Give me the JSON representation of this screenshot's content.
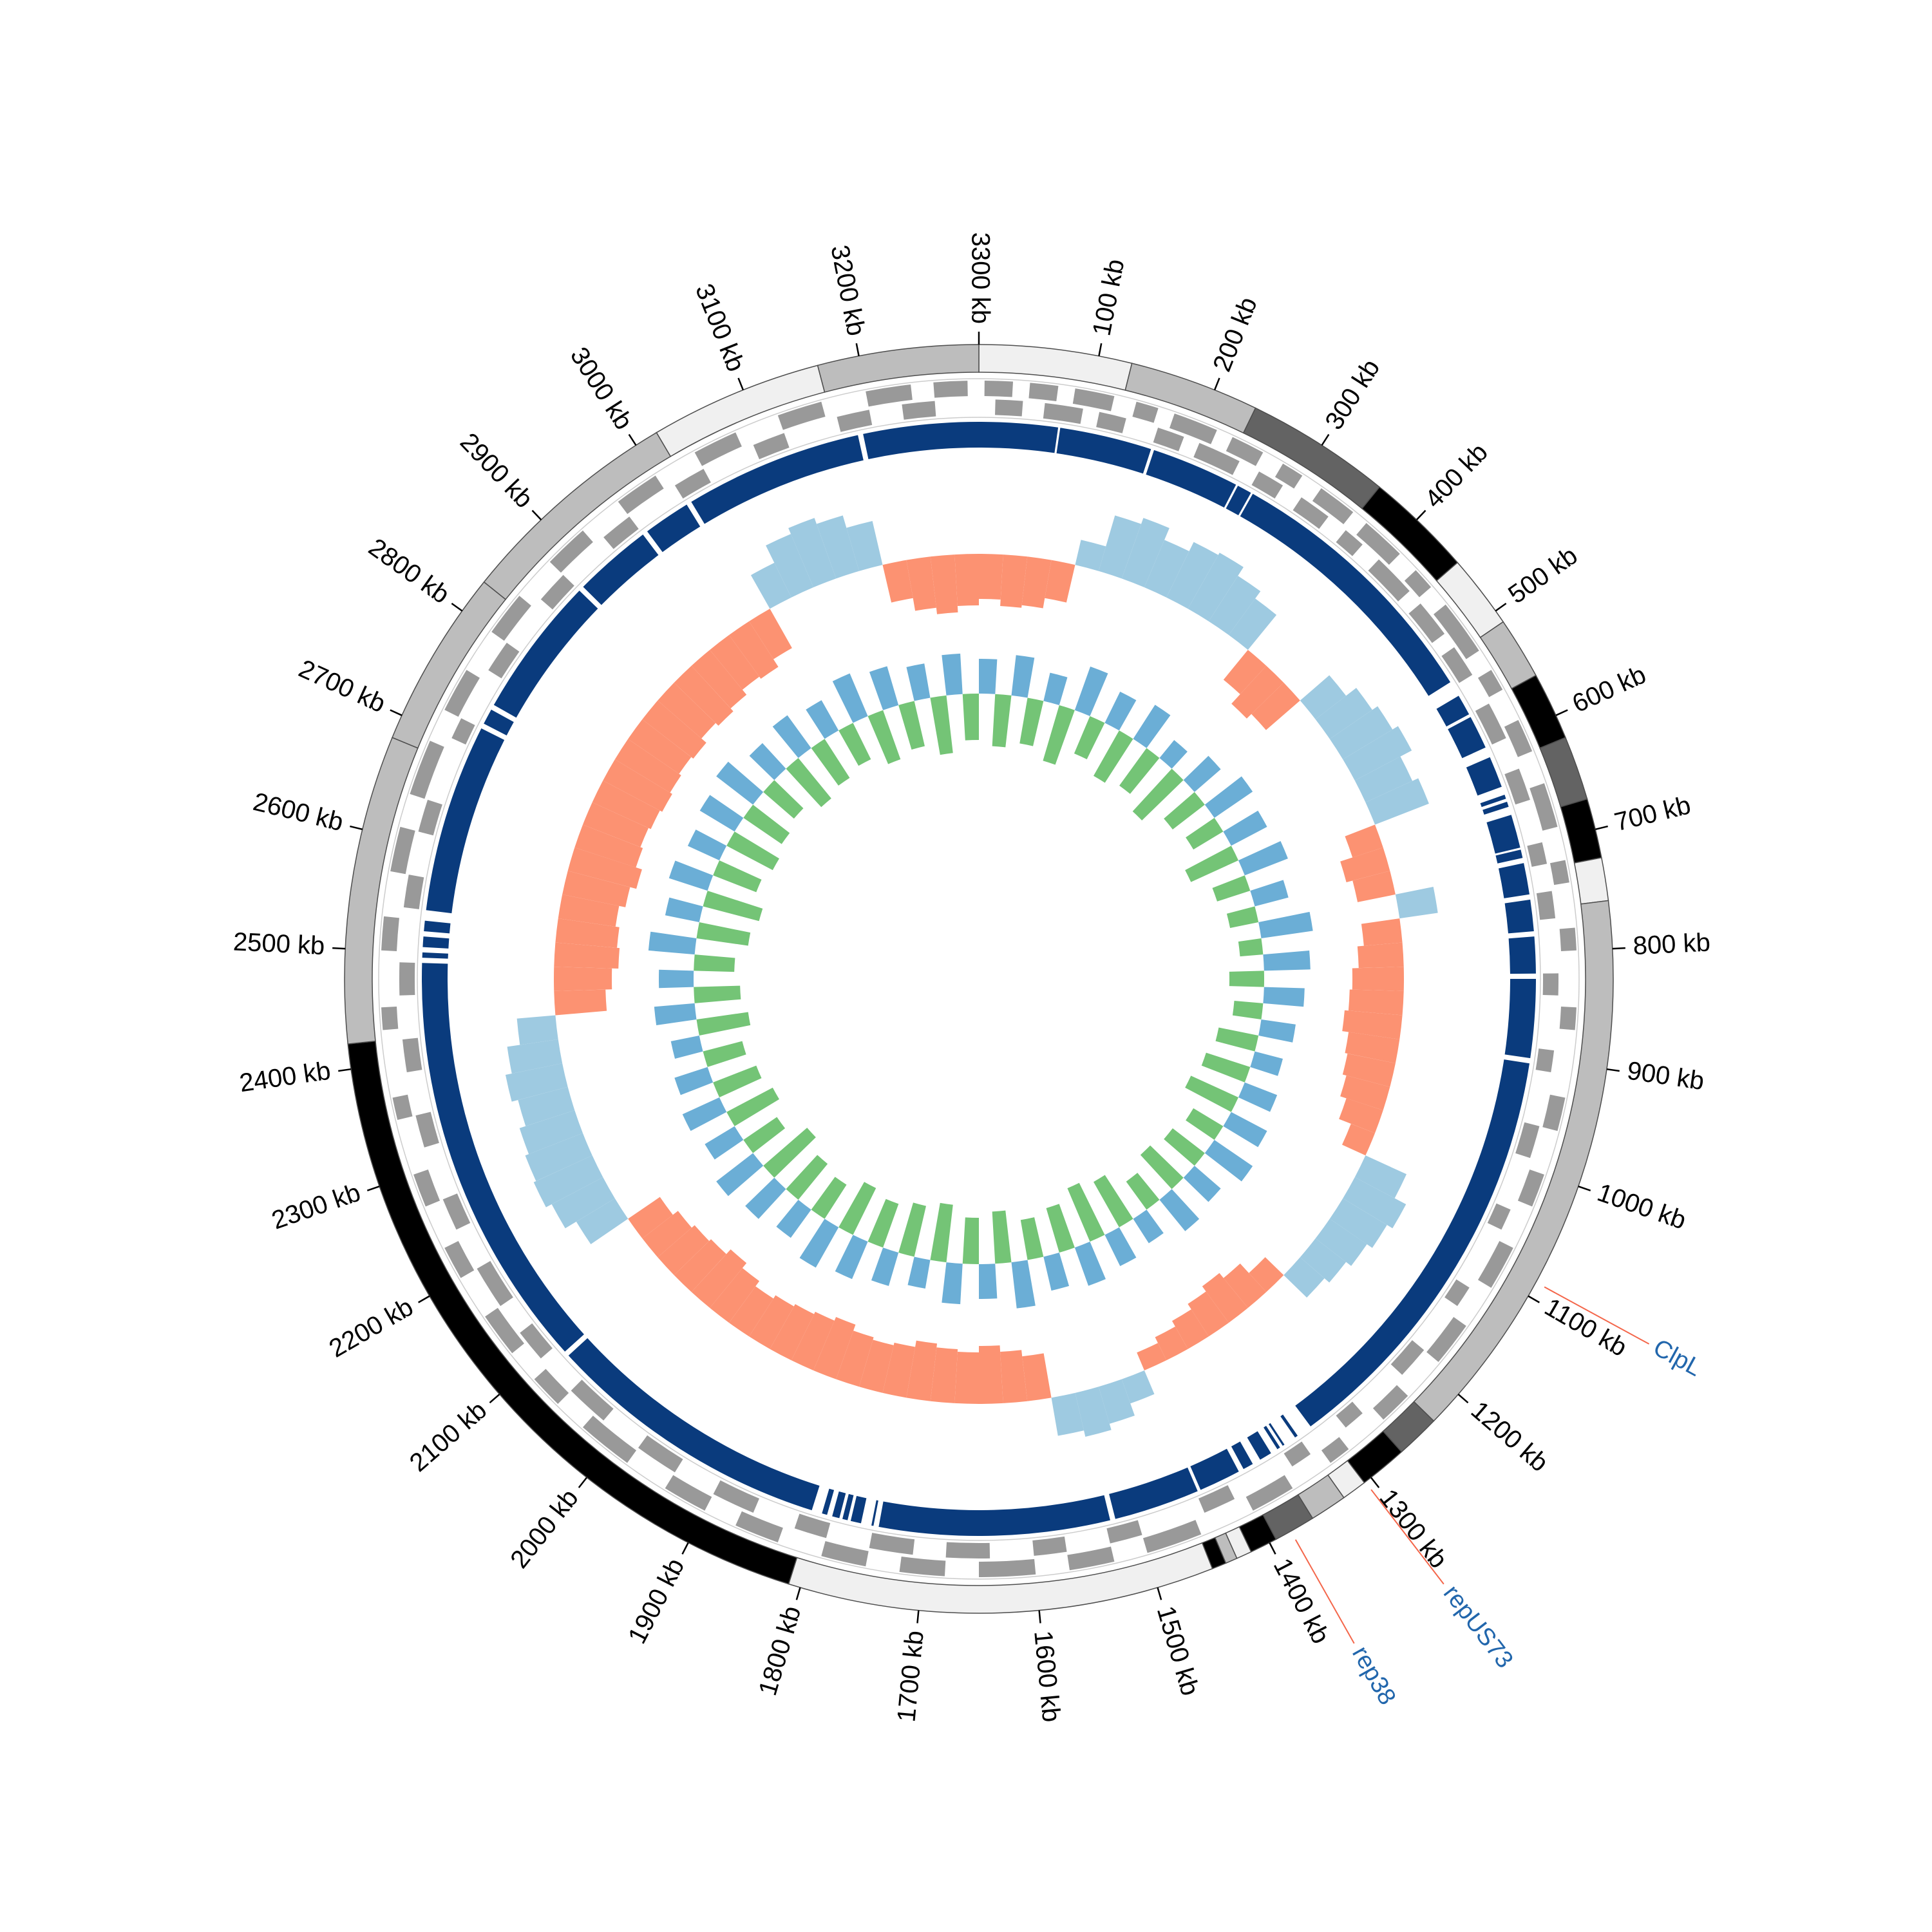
{
  "chart_data": {
    "type": "circular-genome",
    "xlim": [
      0,
      3300
    ],
    "xticks": [
      {
        "value": 100,
        "label": "100 kb"
      },
      {
        "value": 200,
        "label": "200 kb"
      },
      {
        "value": 300,
        "label": "300 kb"
      },
      {
        "value": 400,
        "label": "400 kb"
      },
      {
        "value": 500,
        "label": "500 kb"
      },
      {
        "value": 600,
        "label": "600 kb"
      },
      {
        "value": 700,
        "label": "700 kb"
      },
      {
        "value": 800,
        "label": "800 kb"
      },
      {
        "value": 900,
        "label": "900 kb"
      },
      {
        "value": 1000,
        "label": "1000 kb"
      },
      {
        "value": 1100,
        "label": "1100 kb"
      },
      {
        "value": 1200,
        "label": "1200 kb"
      },
      {
        "value": 1300,
        "label": "1300 kb"
      },
      {
        "value": 1400,
        "label": "1400 kb"
      },
      {
        "value": 1500,
        "label": "1500 kb"
      },
      {
        "value": 1600,
        "label": "1600 kb"
      },
      {
        "value": 1700,
        "label": "1700 kb"
      },
      {
        "value": 1800,
        "label": "1800 kb"
      },
      {
        "value": 1900,
        "label": "1900 kb"
      },
      {
        "value": 2000,
        "label": "2000 kb"
      },
      {
        "value": 2100,
        "label": "2100 kb"
      },
      {
        "value": 2200,
        "label": "2200 kb"
      },
      {
        "value": 2300,
        "label": "2300 kb"
      },
      {
        "value": 2400,
        "label": "2400 kb"
      },
      {
        "value": 2500,
        "label": "2500 kb"
      },
      {
        "value": 2600,
        "label": "2600 kb"
      },
      {
        "value": 2700,
        "label": "2700 kb"
      },
      {
        "value": 2800,
        "label": "2800 kb"
      },
      {
        "value": 2900,
        "label": "2900 kb"
      },
      {
        "value": 3000,
        "label": "3000 kb"
      },
      {
        "value": 3100,
        "label": "3100 kb"
      },
      {
        "value": 3200,
        "label": "3200 kb"
      },
      {
        "value": 3300,
        "label": "3300 kb"
      }
    ],
    "contigs": [
      {
        "start": 0,
        "end": 128,
        "color": "#f0f0f0"
      },
      {
        "start": 128,
        "end": 237,
        "color": "#bdbdbd"
      },
      {
        "start": 237,
        "end": 359,
        "color": "#636363"
      },
      {
        "start": 359,
        "end": 449,
        "color": "#000000"
      },
      {
        "start": 449,
        "end": 511,
        "color": "#f0f0f0"
      },
      {
        "start": 511,
        "end": 563,
        "color": "#bdbdbd"
      },
      {
        "start": 563,
        "end": 620,
        "color": "#000000"
      },
      {
        "start": 620,
        "end": 674,
        "color": "#636363"
      },
      {
        "start": 674,
        "end": 724,
        "color": "#000000"
      },
      {
        "start": 724,
        "end": 760,
        "color": "#f0f0f0"
      },
      {
        "start": 760,
        "end": 1230,
        "color": "#bdbdbd"
      },
      {
        "start": 1230,
        "end": 1267,
        "color": "#636363"
      },
      {
        "start": 1267,
        "end": 1307,
        "color": "#000000"
      },
      {
        "start": 1307,
        "end": 1328,
        "color": "#f0f0f0"
      },
      {
        "start": 1328,
        "end": 1359,
        "color": "#bdbdbd"
      },
      {
        "start": 1359,
        "end": 1394,
        "color": "#636363"
      },
      {
        "start": 1394,
        "end": 1417,
        "color": "#000000"
      },
      {
        "start": 1417,
        "end": 1430,
        "color": "#f0f0f0"
      },
      {
        "start": 1430,
        "end": 1440,
        "color": "#bdbdbd"
      },
      {
        "start": 1440,
        "end": 1452,
        "color": "#000000"
      },
      {
        "start": 1452,
        "end": 1810,
        "color": "#f0f0f0"
      },
      {
        "start": 1810,
        "end": 2421,
        "color": "#000000"
      },
      {
        "start": 2421,
        "end": 2680,
        "color": "#bdbdbd"
      },
      {
        "start": 2680,
        "end": 2830,
        "color": "#bdbdbd"
      },
      {
        "start": 2830,
        "end": 3020,
        "color": "#bdbdbd"
      },
      {
        "start": 3020,
        "end": 3165,
        "color": "#f0f0f0"
      },
      {
        "start": 3165,
        "end": 3300,
        "color": "#bdbdbd"
      }
    ],
    "genes": {
      "color": "#999999",
      "forward": [
        [
          5,
          30
        ],
        [
          45,
          70
        ],
        [
          85,
          120
        ],
        [
          140,
          160
        ],
        [
          175,
          215
        ],
        [
          230,
          260
        ],
        [
          280,
          300
        ],
        [
          320,
          355
        ],
        [
          370,
          410
        ],
        [
          430,
          450
        ],
        [
          470,
          520
        ],
        [
          540,
          560
        ],
        [
          590,
          620
        ],
        [
          650,
          690
        ],
        [
          720,
          740
        ],
        [
          780,
          800
        ],
        [
          850,
          870
        ],
        [
          930,
          960
        ],
        [
          1000,
          1030
        ],
        [
          1070,
          1110
        ],
        [
          1150,
          1190
        ],
        [
          1230,
          1260
        ],
        [
          1300,
          1320
        ],
        [
          1360,
          1400
        ],
        [
          1450,
          1500
        ],
        [
          1530,
          1570
        ],
        [
          1600,
          1650
        ],
        [
          1680,
          1720
        ],
        [
          1750,
          1790
        ],
        [
          1830,
          1870
        ],
        [
          1900,
          1940
        ],
        [
          1980,
          2030
        ],
        [
          2060,
          2090
        ],
        [
          2120,
          2160
        ],
        [
          2200,
          2230
        ],
        [
          2270,
          2300
        ],
        [
          2350,
          2370
        ],
        [
          2430,
          2450
        ],
        [
          2500,
          2530
        ],
        [
          2570,
          2610
        ],
        [
          2640,
          2690
        ],
        [
          2720,
          2760
        ],
        [
          2800,
          2840
        ],
        [
          2880,
          2920
        ],
        [
          2960,
          3000
        ],
        [
          3040,
          3080
        ],
        [
          3120,
          3160
        ],
        [
          3200,
          3240
        ],
        [
          3260,
          3290
        ]
      ],
      "reverse": [
        [
          15,
          40
        ],
        [
          60,
          95
        ],
        [
          110,
          135
        ],
        [
          165,
          190
        ],
        [
          205,
          245
        ],
        [
          265,
          290
        ],
        [
          310,
          340
        ],
        [
          360,
          380
        ],
        [
          400,
          440
        ],
        [
          455,
          490
        ],
        [
          505,
          535
        ],
        [
          565,
          600
        ],
        [
          630,
          660
        ],
        [
          700,
          720
        ],
        [
          745,
          770
        ],
        [
          820,
          840
        ],
        [
          890,
          910
        ],
        [
          960,
          990
        ],
        [
          1040,
          1060
        ],
        [
          1120,
          1140
        ],
        [
          1190,
          1220
        ],
        [
          1270,
          1290
        ],
        [
          1330,
          1350
        ],
        [
          1410,
          1440
        ],
        [
          1500,
          1530
        ],
        [
          1570,
          1600
        ],
        [
          1640,
          1680
        ],
        [
          1710,
          1750
        ],
        [
          1790,
          1820
        ],
        [
          1860,
          1900
        ],
        [
          1940,
          1980
        ],
        [
          2020,
          2060
        ],
        [
          2100,
          2130
        ],
        [
          2160,
          2200
        ],
        [
          2240,
          2270
        ],
        [
          2320,
          2350
        ],
        [
          2390,
          2420
        ],
        [
          2460,
          2490
        ],
        [
          2540,
          2570
        ],
        [
          2610,
          2640
        ],
        [
          2700,
          2720
        ],
        [
          2770,
          2800
        ],
        [
          2850,
          2880
        ],
        [
          2930,
          2960
        ],
        [
          3010,
          3040
        ],
        [
          3090,
          3120
        ],
        [
          3170,
          3200
        ],
        [
          3230,
          3260
        ]
      ]
    },
    "hits": {
      "color": "#0a3b7d",
      "starts": [
        0,
        77,
        168,
        254,
        270,
        545,
        568,
        610,
        648,
        655,
        668,
        702,
        715,
        750,
        785,
        825,
        905,
        1330,
        1345,
        1350,
        1360,
        1380,
        1395,
        1438,
        1525,
        1750,
        1762,
        1775,
        1783,
        1795,
        1810,
        2090,
        2495,
        2505,
        2520,
        2540,
        2725,
        2745,
        2885,
        2965,
        3015,
        3190
      ],
      "ends": [
        75,
        165,
        252,
        268,
        530,
        565,
        600,
        640,
        652,
        660,
        700,
        710,
        745,
        780,
        820,
        900,
        1315,
        1333,
        1347,
        1353,
        1372,
        1390,
        1435,
        1520,
        1745,
        1752,
        1772,
        1780,
        1790,
        1800,
        2085,
        2490,
        2500,
        2515,
        2530,
        2720,
        2740,
        2880,
        2960,
        3010,
        3185,
        3300
      ]
    },
    "x": [
      0,
      30,
      60,
      90,
      120,
      150,
      180,
      210,
      240,
      270,
      300,
      330,
      360,
      390,
      420,
      450,
      480,
      510,
      540,
      570,
      600,
      630,
      660,
      690,
      720,
      750,
      780,
      810,
      840,
      870,
      900,
      930,
      960,
      990,
      1020,
      1050,
      1080,
      1110,
      1140,
      1170,
      1200,
      1230,
      1260,
      1290,
      1320,
      1350,
      1380,
      1410,
      1440,
      1470,
      1500,
      1530,
      1560,
      1590,
      1620,
      1650,
      1680,
      1710,
      1740,
      1770,
      1800,
      1830,
      1860,
      1890,
      1920,
      1950,
      1980,
      2010,
      2040,
      2070,
      2100,
      2130,
      2160,
      2190,
      2220,
      2250,
      2280,
      2310,
      2340,
      2370,
      2400,
      2430,
      2460,
      2490,
      2520,
      2550,
      2580,
      2610,
      2640,
      2670,
      2700,
      2730,
      2760,
      2790,
      2820,
      2850,
      2880,
      2910,
      2940,
      2970,
      3000,
      3030,
      3060,
      3090,
      3120,
      3150,
      3180,
      3210,
      3240,
      3270
    ],
    "gc_skew": {
      "colors": {
        "positive": "#9ecae1",
        "negative": "#fc9272"
      },
      "ylim": [
        -0.1,
        0.1
      ],
      "values": [
        -0.035,
        -0.04,
        -0.038,
        -0.03,
        0.02,
        0.045,
        0.05,
        0.04,
        0.048,
        0.05,
        0.042,
        0.035,
        -0.03,
        -0.04,
        -0.035,
        0.03,
        0.04,
        0.045,
        0.05,
        0.04,
        0.045,
        -0.025,
        -0.035,
        -0.03,
        0.03,
        -0.03,
        -0.035,
        -0.04,
        -0.042,
        -0.045,
        -0.04,
        -0.038,
        -0.035,
        -0.03,
        -0.02,
        0.035,
        0.045,
        0.04,
        0.035,
        0.03,
        0.025,
        -0.02,
        -0.03,
        -0.035,
        -0.03,
        -0.025,
        -0.02,
        -0.015,
        0.02,
        0.03,
        0.035,
        0.03,
        -0.035,
        -0.04,
        -0.045,
        -0.04,
        -0.042,
        -0.045,
        -0.04,
        -0.038,
        -0.04,
        -0.045,
        -0.042,
        -0.04,
        -0.038,
        -0.035,
        -0.04,
        -0.045,
        -0.04,
        -0.038,
        -0.035,
        -0.03,
        0.035,
        0.045,
        0.05,
        0.048,
        0.045,
        0.04,
        0.045,
        0.04,
        0.03,
        -0.04,
        -0.045,
        -0.05,
        -0.048,
        -0.045,
        -0.05,
        -0.055,
        -0.05,
        -0.048,
        -0.05,
        -0.052,
        -0.05,
        -0.048,
        -0.05,
        -0.045,
        -0.048,
        -0.045,
        -0.04,
        -0.042,
        -0.035,
        0.03,
        0.045,
        0.05,
        0.045,
        0.035,
        -0.03,
        -0.04,
        -0.045,
        -0.04
      ]
    },
    "gc_content": {
      "colors": {
        "positive": "#6baed6",
        "negative": "#74c476"
      },
      "ylim": [
        -0.1,
        0.1
      ],
      "values": [
        0.03,
        -0.045,
        0.035,
        -0.04,
        0.025,
        -0.05,
        0.04,
        -0.035,
        0.03,
        -0.045,
        0.035,
        -0.04,
        0.02,
        -0.05,
        0.03,
        -0.035,
        0.04,
        -0.03,
        0.035,
        -0.045,
        0.04,
        -0.03,
        0.03,
        -0.025,
        0.045,
        -0.02,
        0.04,
        -0.03,
        0.035,
        -0.025,
        0.03,
        -0.035,
        0.025,
        -0.04,
        0.03,
        -0.045,
        0.035,
        -0.03,
        0.04,
        -0.035,
        0.03,
        -0.04,
        0.035,
        -0.03,
        0.025,
        -0.045,
        0.03,
        -0.05,
        0.035,
        -0.04,
        0.03,
        -0.035,
        0.04,
        -0.045,
        0.03,
        -0.04,
        0.035,
        -0.05,
        0.025,
        -0.045,
        0.03,
        -0.04,
        0.035,
        -0.045,
        0.04,
        -0.035,
        0.03,
        -0.04,
        0.035,
        -0.05,
        0.04,
        -0.035,
        0.03,
        -0.045,
        0.035,
        -0.04,
        0.03,
        -0.035,
        0.025,
        -0.045,
        0.035,
        -0.04,
        0.03,
        -0.035,
        0.04,
        -0.045,
        0.03,
        -0.05,
        0.035,
        -0.04,
        0.03,
        -0.045,
        0.035,
        -0.04,
        0.04,
        -0.035,
        0.03,
        -0.045,
        0.035,
        -0.04,
        0.03,
        -0.035,
        0.04,
        -0.045,
        0.035,
        -0.04,
        0.03,
        -0.05,
        0.035,
        -0.04
      ]
    },
    "annotations": [
      {
        "label": "ClpL",
        "position": 1087
      },
      {
        "label": "repUS73",
        "position": 1306
      },
      {
        "label": "rep38",
        "position": 1380
      }
    ]
  }
}
